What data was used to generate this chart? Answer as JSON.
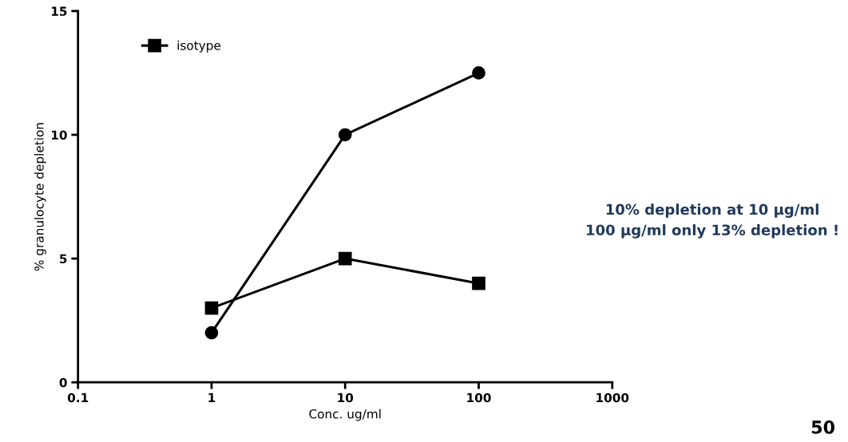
{
  "chart_data": {
    "type": "line",
    "xlabel": "Conc. ug/ml",
    "ylabel": "% granulocyte depletion",
    "log": "x",
    "x": [
      1,
      10,
      100
    ],
    "series": [
      {
        "color": "#000000",
        "marker": "circle",
        "values": [
          2,
          10,
          12.5
        ]
      },
      {
        "name": "isotype",
        "color": "#000000",
        "marker": "square",
        "values": [
          3,
          5,
          4
        ]
      }
    ],
    "xlim": [
      0.1,
      1000
    ],
    "xticks": [
      0.1,
      1,
      10,
      100,
      1000
    ],
    "ylim": [
      0,
      15
    ],
    "yticks": [
      0,
      5,
      10,
      15
    ],
    "grid": false,
    "legend": "top left",
    "line_style": "solid",
    "annotations": [
      "10% depletion at 10 µg/ml\n100 µg/ml only 13% depletion !",
      "50"
    ]
  }
}
